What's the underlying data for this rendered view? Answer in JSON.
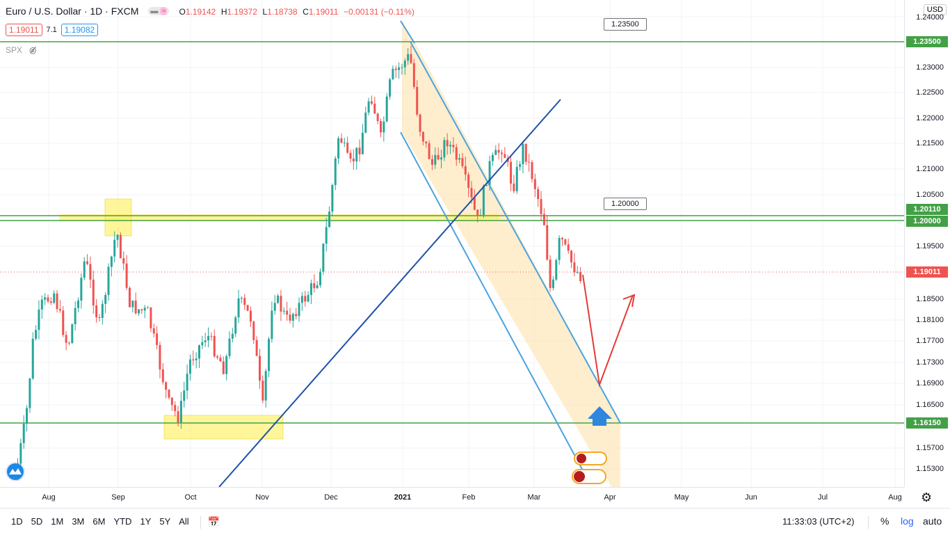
{
  "header": {
    "symbol": "Euro / U.S. Dollar · 1D · FXCM",
    "ohlc": {
      "o_label": "O",
      "o": "1.19142",
      "h_label": "H",
      "h": "1.19372",
      "l_label": "L",
      "l": "1.18738",
      "c_label": "C",
      "c": "1.19011",
      "change": "−0.00131 (−0.11%)"
    },
    "sell_price": "1.19011",
    "spread": "7.1",
    "buy_price": "1.19082",
    "compare_symbol": "SPX"
  },
  "price_axis": {
    "currency": "USD",
    "ticks": [
      "1.24000",
      "1.23000",
      "1.22500",
      "1.22000",
      "1.21500",
      "1.21000",
      "1.20500",
      "1.19500",
      "1.18500",
      "1.18100",
      "1.17700",
      "1.17300",
      "1.16900",
      "1.16500",
      "1.15700",
      "1.15300"
    ],
    "labels": {
      "l1": {
        "text": "1.23500",
        "color": "#43a047"
      },
      "l2": {
        "text": "1.20110",
        "color": "#43a047"
      },
      "l3": {
        "text": "1.20000",
        "color": "#43a047"
      },
      "l4": {
        "text": "1.19011",
        "color": "#ef5350"
      },
      "l5": {
        "text": "1.16150",
        "color": "#43a047"
      }
    }
  },
  "callouts": {
    "c1": "1.23500",
    "c2": "1.20000"
  },
  "time_axis": {
    "ticks": [
      "Aug",
      "Sep",
      "Oct",
      "Nov",
      "Dec",
      "2021",
      "Feb",
      "Mar",
      "Apr",
      "May",
      "Jun",
      "Jul",
      "Aug"
    ]
  },
  "bottom_bar": {
    "timeframes": [
      "1D",
      "5D",
      "1M",
      "3M",
      "6M",
      "YTD",
      "1Y",
      "5Y",
      "All"
    ],
    "clock": "11:33:03 (UTC+2)",
    "percent": "%",
    "log": "log",
    "auto": "auto"
  },
  "colors": {
    "up": "#26a69a",
    "down": "#ef5350",
    "level": "#43a047",
    "channel": "#4aa3df",
    "trend": "#1e4fa8",
    "zone": "#ffee58",
    "channel_fill": "#ffe0a6"
  }
}
